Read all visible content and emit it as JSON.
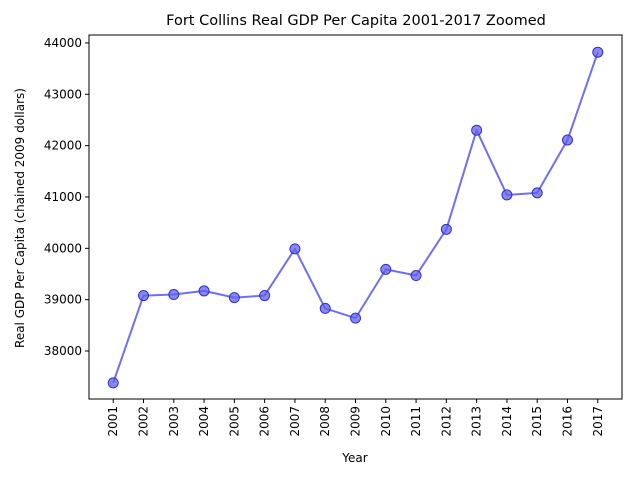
{
  "chart_data": {
    "type": "line",
    "title": "Fort Collins Real GDP Per Capita 2001-2017 Zoomed",
    "xlabel": "Year",
    "ylabel": "Real GDP Per Capita (chained 2009 dollars)",
    "categories": [
      "2001",
      "2002",
      "2003",
      "2004",
      "2005",
      "2006",
      "2007",
      "2008",
      "2009",
      "2010",
      "2011",
      "2012",
      "2013",
      "2014",
      "2015",
      "2016",
      "2017"
    ],
    "series": [
      {
        "values": [
          37380,
          39080,
          39100,
          39170,
          39040,
          39080,
          39990,
          38830,
          38640,
          39590,
          39470,
          40370,
          42300,
          41040,
          41080,
          42110,
          43820
        ]
      }
    ],
    "yticks": [
      38000,
      39000,
      40000,
      41000,
      42000,
      43000,
      44000
    ],
    "ylim": [
      37065,
      44155
    ],
    "grid": false,
    "legend": "none",
    "colors": {
      "line": "#7070ee",
      "marker_fill": "#6060ee",
      "marker_edge": "#3030c8"
    }
  }
}
